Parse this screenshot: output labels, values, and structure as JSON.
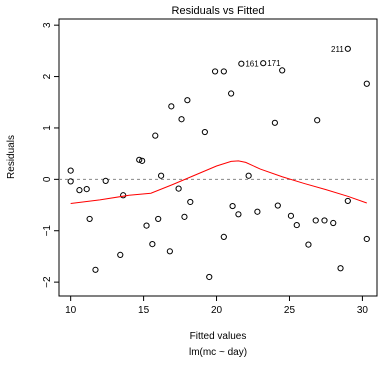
{
  "chart_data": {
    "type": "scatter",
    "title": "Residuals vs Fitted",
    "xlabel": "Fitted values",
    "subtitle": "lm(mc ~ day)",
    "ylabel": "Residuals",
    "xlim": [
      9.2,
      31.0
    ],
    "ylim": [
      -2.27,
      3.12
    ],
    "x_ticks": [
      "10",
      "15",
      "20",
      "25",
      "30"
    ],
    "y_ticks": [
      "−2",
      "−1",
      "0",
      "1",
      "2",
      "3"
    ],
    "grid": false,
    "reference_line": 0,
    "points": [
      {
        "x": 10.0,
        "y": 0.17
      },
      {
        "x": 10.0,
        "y": -0.04
      },
      {
        "x": 10.6,
        "y": -0.21
      },
      {
        "x": 11.1,
        "y": -0.19
      },
      {
        "x": 11.3,
        "y": -0.77
      },
      {
        "x": 11.7,
        "y": -1.76
      },
      {
        "x": 12.4,
        "y": -0.03
      },
      {
        "x": 13.4,
        "y": -1.47
      },
      {
        "x": 13.6,
        "y": -0.31
      },
      {
        "x": 14.7,
        "y": 0.38
      },
      {
        "x": 14.9,
        "y": 0.36
      },
      {
        "x": 15.2,
        "y": -0.9
      },
      {
        "x": 15.6,
        "y": -1.26
      },
      {
        "x": 16.0,
        "y": -0.77
      },
      {
        "x": 15.8,
        "y": 0.85
      },
      {
        "x": 16.2,
        "y": 0.07
      },
      {
        "x": 16.8,
        "y": -1.4
      },
      {
        "x": 16.9,
        "y": 1.42
      },
      {
        "x": 17.4,
        "y": -0.18
      },
      {
        "x": 17.6,
        "y": 1.17
      },
      {
        "x": 17.8,
        "y": -0.73
      },
      {
        "x": 18.2,
        "y": -0.44
      },
      {
        "x": 18.0,
        "y": 1.54
      },
      {
        "x": 19.2,
        "y": 0.92
      },
      {
        "x": 19.5,
        "y": -1.9
      },
      {
        "x": 19.9,
        "y": 2.1
      },
      {
        "x": 20.5,
        "y": 2.1
      },
      {
        "x": 20.5,
        "y": -1.12
      },
      {
        "x": 21.0,
        "y": 1.67
      },
      {
        "x": 21.1,
        "y": -0.52
      },
      {
        "x": 21.5,
        "y": -0.68
      },
      {
        "x": 21.7,
        "y": 2.25
      },
      {
        "x": 22.2,
        "y": 0.07
      },
      {
        "x": 22.8,
        "y": -0.63
      },
      {
        "x": 23.2,
        "y": 2.26
      },
      {
        "x": 24.0,
        "y": 1.1
      },
      {
        "x": 24.2,
        "y": -0.51
      },
      {
        "x": 24.5,
        "y": 2.12
      },
      {
        "x": 25.1,
        "y": -0.71
      },
      {
        "x": 25.5,
        "y": -0.89
      },
      {
        "x": 26.3,
        "y": -1.27
      },
      {
        "x": 26.8,
        "y": -0.8
      },
      {
        "x": 26.9,
        "y": 1.15
      },
      {
        "x": 27.4,
        "y": -0.8
      },
      {
        "x": 28.0,
        "y": -0.85
      },
      {
        "x": 28.5,
        "y": -1.73
      },
      {
        "x": 29.0,
        "y": -0.42
      },
      {
        "x": 29.0,
        "y": 2.54
      },
      {
        "x": 30.3,
        "y": -1.16
      },
      {
        "x": 30.3,
        "y": 1.86
      }
    ],
    "labeled_points": [
      {
        "label": "161",
        "x": 21.7,
        "y": 2.25
      },
      {
        "label": "171",
        "x": 23.2,
        "y": 2.26
      },
      {
        "label": "211",
        "x": 29.0,
        "y": 2.54
      }
    ],
    "smoother": {
      "color": "#ff0000",
      "x": [
        10.0,
        12.0,
        14.0,
        15.5,
        17.0,
        18.5,
        20.0,
        21.0,
        21.5,
        22.0,
        23.0,
        24.5,
        26.0,
        27.5,
        29.0,
        30.3
      ],
      "y": [
        -0.47,
        -0.4,
        -0.31,
        -0.27,
        -0.1,
        0.08,
        0.26,
        0.35,
        0.36,
        0.33,
        0.2,
        0.05,
        -0.08,
        -0.2,
        -0.33,
        -0.46
      ]
    }
  }
}
